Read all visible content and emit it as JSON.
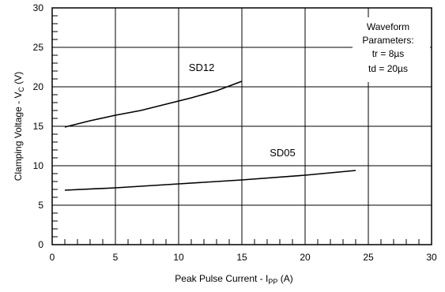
{
  "chart_data": {
    "type": "line",
    "xlabel": "Peak Pulse Current - I",
    "xlabel_sub": "PP",
    "xlabel_unit": " (A)",
    "ylabel": "Clamping Voltage - V",
    "ylabel_sub": "C",
    "ylabel_unit": " (V)",
    "xlim": [
      0,
      30
    ],
    "ylim": [
      0,
      30
    ],
    "xticks": [
      "0",
      "5",
      "10",
      "15",
      "20",
      "25",
      "30"
    ],
    "yticks": [
      "0",
      "5",
      "10",
      "15",
      "20",
      "25",
      "30"
    ],
    "grid": true,
    "series": [
      {
        "name": "SD12",
        "x": [
          1,
          3,
          5,
          7,
          9,
          11,
          13,
          15
        ],
        "y": [
          14.9,
          15.7,
          16.4,
          17.0,
          17.8,
          18.6,
          19.5,
          20.7
        ]
      },
      {
        "name": "SD05",
        "x": [
          1,
          5,
          10,
          15,
          20,
          24
        ],
        "y": [
          6.9,
          7.2,
          7.7,
          8.2,
          8.8,
          9.4
        ]
      }
    ],
    "annotation": [
      "Waveform",
      "Parameters:",
      "tr = 8µs",
      "td = 20µs"
    ]
  }
}
